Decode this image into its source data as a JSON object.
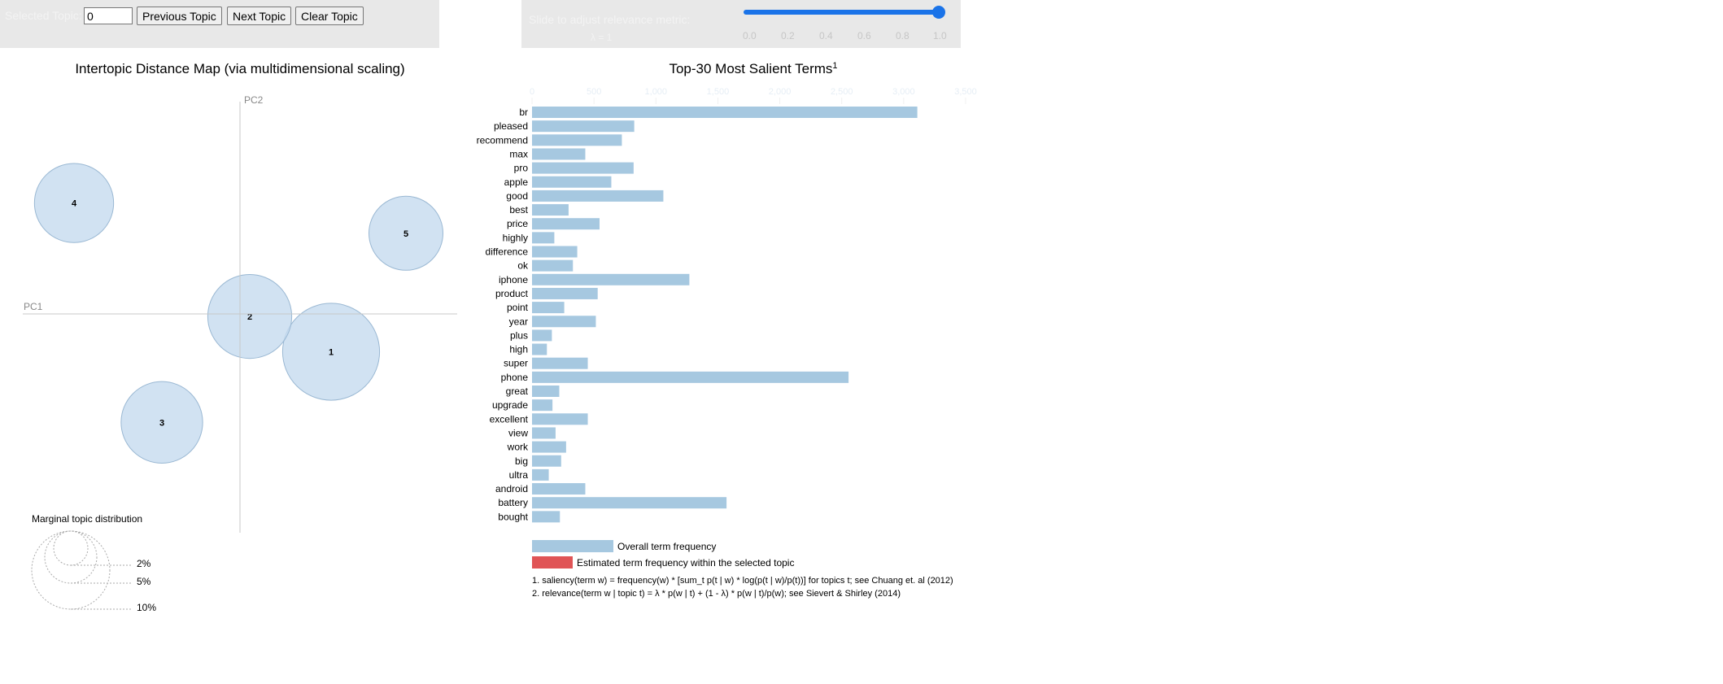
{
  "controls": {
    "topic_label": "Selected Topic:",
    "topic_value": "0",
    "previous_label": "Previous Topic",
    "next_label": "Next Topic",
    "clear_label": "Clear Topic",
    "slider_label": "Slide to adjust relevance metric:",
    "lambda_text": "λ = 1",
    "slider_ticks": [
      "0.0",
      "0.2",
      "0.4",
      "0.6",
      "0.8",
      "1.0"
    ],
    "slider_value": 1.0,
    "accent_color": "#1a73e8"
  },
  "left_panel": {
    "title": "Intertopic Distance Map (via multidimensional scaling)",
    "pc1_label": "PC1",
    "pc2_label": "PC2",
    "marginal_title": "Marginal topic distribution",
    "marginal_labels": [
      "2%",
      "5%",
      "10%"
    ]
  },
  "right_panel": {
    "title": "Top-30 Most Salient Terms",
    "title_sup": "1",
    "legend_overall": "Overall term frequency",
    "legend_estimated": "Estimated term frequency within the selected topic",
    "footnote_1": "1. saliency(term w) = frequency(w) * [sum_t p(t | w) * log(p(t | w)/p(t))] for topics t; see Chuang et. al (2012)",
    "footnote_2": "2. relevance(term w | topic t) = λ * p(w | t) + (1 - λ) * p(w | t)/p(w); see Sievert & Shirley (2014)"
  },
  "chart_data": [
    {
      "type": "scatter",
      "title": "Intertopic Distance Map (via multidimensional scaling)",
      "xlabel": "PC1",
      "ylabel": "PC2",
      "bubble_color": "#c6dbef",
      "points": [
        {
          "topic": "1",
          "x": 0.28,
          "y": -0.15,
          "marginal_pct": 12.0
        },
        {
          "topic": "2",
          "x": 0.03,
          "y": -0.01,
          "marginal_pct": 9.0
        },
        {
          "topic": "3",
          "x": -0.24,
          "y": -0.43,
          "marginal_pct": 8.5
        },
        {
          "topic": "4",
          "x": -0.51,
          "y": 0.44,
          "marginal_pct": 8.0
        },
        {
          "topic": "5",
          "x": 0.51,
          "y": 0.32,
          "marginal_pct": 7.0
        }
      ]
    },
    {
      "type": "bar",
      "title": "Top-30 Most Salient Terms",
      "bar_color": "#a6c8e0",
      "highlight_color": "#e05456",
      "xlim": [
        0,
        3500
      ],
      "xticks": [
        "0",
        "500",
        "1,000",
        "1,500",
        "2,000",
        "2,500",
        "3,000",
        "3,500"
      ],
      "categories": [
        "br",
        "pleased",
        "recommend",
        "max",
        "pro",
        "apple",
        "good",
        "best",
        "price",
        "highly",
        "difference",
        "ok",
        "iphone",
        "product",
        "point",
        "year",
        "plus",
        "high",
        "super",
        "phone",
        "great",
        "upgrade",
        "excellent",
        "view",
        "work",
        "big",
        "ultra",
        "android",
        "battery",
        "bought"
      ],
      "values": [
        3110,
        825,
        725,
        430,
        820,
        640,
        1060,
        295,
        545,
        180,
        365,
        330,
        1270,
        530,
        260,
        515,
        160,
        120,
        450,
        2555,
        220,
        165,
        450,
        190,
        275,
        235,
        135,
        430,
        1570,
        225
      ]
    }
  ]
}
